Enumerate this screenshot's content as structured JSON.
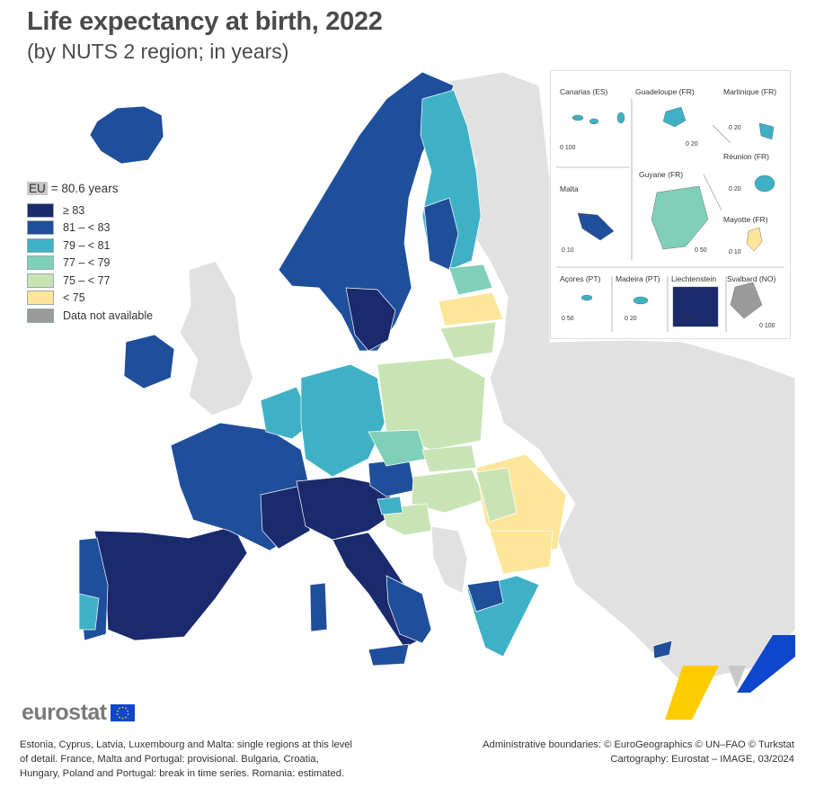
{
  "header": {
    "title": "Life expectancy at birth, 2022",
    "subtitle": "(by NUTS 2 region; in years)"
  },
  "legend": {
    "eu_label": "EU",
    "eu_value_text": " = 80.6 years",
    "classes": [
      {
        "label": "≥ 83",
        "color": "#1a2a6c"
      },
      {
        "label": "81 – < 83",
        "color": "#1f4f9b"
      },
      {
        "label": "79 – < 81",
        "color": "#3fb1c6"
      },
      {
        "label": "77 – < 79",
        "color": "#7fcfb9"
      },
      {
        "label": "75 – < 77",
        "color": "#c9e4b4"
      },
      {
        "label": "< 75",
        "color": "#fde69a"
      },
      {
        "label": "Data not available",
        "color": "#9b9b9b"
      }
    ],
    "non_covered_color": "#e1e1e1"
  },
  "insets": [
    {
      "name": "Canarias (ES)",
      "scale": "0   100"
    },
    {
      "name": "Guadeloupe (FR)",
      "scale": "0   20"
    },
    {
      "name": "Martinique (FR)",
      "scale": "0   20"
    },
    {
      "name": "Réunion (FR)",
      "scale": "0   20"
    },
    {
      "name": "Malta",
      "scale": "0   10"
    },
    {
      "name": "Guyane (FR)",
      "scale": "0   50"
    },
    {
      "name": "Mayotte (FR)",
      "scale": "0   10"
    },
    {
      "name": "Açores (PT)",
      "scale": "0   50"
    },
    {
      "name": "Madeira (PT)",
      "scale": "0   20"
    },
    {
      "name": "Liechtenstein",
      "scale": "0   10"
    },
    {
      "name": "Svalbard (NO)",
      "scale": "0   100"
    }
  ],
  "brand": {
    "name": "eurostat"
  },
  "footer": {
    "note_lines": [
      "Estonia, Cyprus, Latvia, Luxembourg and Malta: single regions at this level",
      "of detail. France, Malta and Portugal: provisional. Bulgaria, Croatia,",
      "Hungary, Poland and Portugal: break in time series. Romania: estimated."
    ],
    "source_lines": [
      "Administrative boundaries: © EuroGeographics © UN–FAO © Turkstat",
      "Cartography: Eurostat – IMAGE, 03/2024"
    ]
  }
}
